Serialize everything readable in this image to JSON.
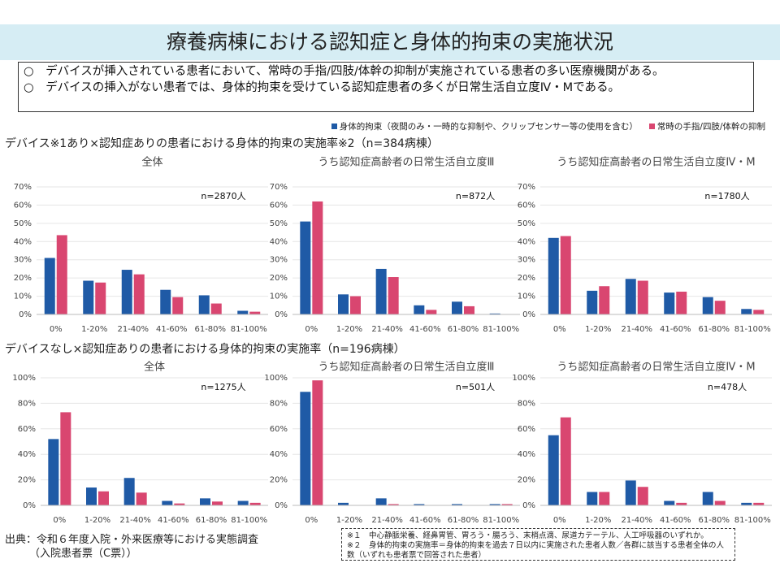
{
  "header": {
    "title": "療養病棟における認知症と身体的拘束の実施状況"
  },
  "bullets": [
    "○　デバイスが挿入されている患者において、常時の手指/四肢/体幹の抑制が実施されている患者の多い医療機関がある。",
    "○　デバイスの挿入がない患者では、身体的拘束を受けている認知症患者の多くが日常生活自立度Ⅳ・Mである。"
  ],
  "legend": [
    {
      "name": "身体的拘束（夜間のみ・一時的な抑制や、クリップセンサー等の使用を含む）",
      "color": "#1f5aa6"
    },
    {
      "name": "常時の手指/四肢/体幹の抑制",
      "color": "#d94670"
    }
  ],
  "sections": [
    "デバイス※1あり×認知症ありの患者における身体的拘束の実施率※2（n=384病棟）",
    "デバイスなし×認知症ありの患者における身体的拘束の実施率（n=196病棟）"
  ],
  "chart_data": [
    {
      "type": "bar",
      "title": "全体",
      "annotation": "n=2870人",
      "categories": [
        "0%",
        "1-20%",
        "21-40%",
        "41-60%",
        "61-80%",
        "81-100%"
      ],
      "series": [
        {
          "values": [
            31,
            18.5,
            24.5,
            13.5,
            10.5,
            2
          ]
        },
        {
          "values": [
            43.5,
            17.5,
            22,
            9.5,
            6,
            1.5
          ]
        }
      ],
      "ylim": [
        0,
        70
      ],
      "yticks": [
        {
          "value": 0,
          "label": "0%"
        },
        {
          "value": 10,
          "label": "10%"
        },
        {
          "value": 20,
          "label": "20%"
        },
        {
          "value": 30,
          "label": "30%"
        },
        {
          "value": 40,
          "label": "40%"
        },
        {
          "value": 50,
          "label": "50%"
        },
        {
          "value": 60,
          "label": "60%"
        },
        {
          "value": 70,
          "label": "70%"
        }
      ]
    },
    {
      "type": "bar",
      "title": "うち認知症高齢者の日常生活自立度Ⅲ",
      "annotation": "n=872人",
      "categories": [
        "0%",
        "1-20%",
        "21-40%",
        "41-60%",
        "61-80%",
        "81-100%"
      ],
      "series": [
        {
          "values": [
            51,
            11,
            25,
            5,
            7,
            0.5
          ]
        },
        {
          "values": [
            62,
            10,
            20.5,
            2.5,
            4.5,
            0
          ]
        }
      ],
      "ylim": [
        0,
        70
      ],
      "yticks": [
        {
          "value": 0,
          "label": "0%"
        },
        {
          "value": 10,
          "label": "10%"
        },
        {
          "value": 20,
          "label": "20%"
        },
        {
          "value": 30,
          "label": "30%"
        },
        {
          "value": 40,
          "label": "40%"
        },
        {
          "value": 50,
          "label": "50%"
        },
        {
          "value": 60,
          "label": "60%"
        },
        {
          "value": 70,
          "label": "70%"
        }
      ]
    },
    {
      "type": "bar",
      "title": "うち認知症高齢者の日常生活自立度Ⅳ・M",
      "annotation": "n=1780人",
      "categories": [
        "0%",
        "1-20%",
        "21-40%",
        "41-60%",
        "61-80%",
        "81-100%"
      ],
      "series": [
        {
          "values": [
            42,
            13,
            19.5,
            12,
            9.5,
            3
          ]
        },
        {
          "values": [
            43,
            15.5,
            18.5,
            12.5,
            7.5,
            2.5
          ]
        }
      ],
      "ylim": [
        0,
        70
      ],
      "yticks": [
        {
          "value": 0,
          "label": "0%"
        },
        {
          "value": 10,
          "label": "10%"
        },
        {
          "value": 20,
          "label": "20%"
        },
        {
          "value": 30,
          "label": "30%"
        },
        {
          "value": 40,
          "label": "40%"
        },
        {
          "value": 50,
          "label": "50%"
        },
        {
          "value": 60,
          "label": "60%"
        },
        {
          "value": 70,
          "label": "70%"
        }
      ]
    },
    {
      "type": "bar",
      "title": "全体",
      "annotation": "n=1275人",
      "categories": [
        "0%",
        "1-20%",
        "21-40%",
        "41-60%",
        "61-80%",
        "81-100%"
      ],
      "series": [
        {
          "values": [
            52,
            14,
            21.5,
            3.5,
            5.5,
            3.5
          ]
        },
        {
          "values": [
            73,
            11,
            10,
            1.5,
            3,
            2
          ]
        }
      ],
      "ylim": [
        0,
        100
      ],
      "yticks": [
        {
          "value": 0,
          "label": "0%"
        },
        {
          "value": 20,
          "label": "20%"
        },
        {
          "value": 40,
          "label": "40%"
        },
        {
          "value": 60,
          "label": "60%"
        },
        {
          "value": 80,
          "label": "80%"
        },
        {
          "value": 100,
          "label": "100%"
        }
      ]
    },
    {
      "type": "bar",
      "title": "うち認知症高齢者の日常生活自立度Ⅲ",
      "annotation": "n=501人",
      "categories": [
        "0%",
        "1-20%",
        "21-40%",
        "41-60%",
        "61-80%",
        "81-100%"
      ],
      "series": [
        {
          "values": [
            89,
            2,
            5.5,
            1,
            1,
            1
          ]
        },
        {
          "values": [
            98,
            0,
            1,
            0,
            0,
            1
          ]
        }
      ],
      "ylim": [
        0,
        100
      ],
      "yticks": [
        {
          "value": 0,
          "label": "0%"
        },
        {
          "value": 20,
          "label": "20%"
        },
        {
          "value": 40,
          "label": "40%"
        },
        {
          "value": 60,
          "label": "60%"
        },
        {
          "value": 80,
          "label": "80%"
        },
        {
          "value": 100,
          "label": "100%"
        }
      ]
    },
    {
      "type": "bar",
      "title": "うち認知症高齢者の日常生活自立度Ⅳ・M",
      "annotation": "n=478人",
      "categories": [
        "0%",
        "1-20%",
        "21-40%",
        "41-60%",
        "61-80%",
        "81-100%"
      ],
      "series": [
        {
          "values": [
            55,
            10.5,
            19.5,
            3.5,
            10.5,
            2
          ]
        },
        {
          "values": [
            69,
            10.5,
            14.5,
            2,
            3.5,
            2
          ]
        }
      ],
      "ylim": [
        0,
        100
      ],
      "yticks": [
        {
          "value": 0,
          "label": "0%"
        },
        {
          "value": 20,
          "label": "20%"
        },
        {
          "value": 40,
          "label": "40%"
        },
        {
          "value": 60,
          "label": "60%"
        },
        {
          "value": 80,
          "label": "80%"
        },
        {
          "value": 100,
          "label": "100%"
        }
      ]
    }
  ],
  "source": [
    "出典：令和６年度入院・外来医療等における実態調査",
    "（入院患者票（C票））"
  ],
  "notes": [
    "※１　中心静脈栄養、経鼻胃管、胃ろう・腸ろう、末梢点滴、尿道カテーテル、人工呼吸器のいずれか。",
    "※２　身体的拘束の実施率＝身体的拘束を過去７日以内に実施された患者人数／各群に該当する患者全体の人数（いずれも患者票で回答された患者）"
  ]
}
